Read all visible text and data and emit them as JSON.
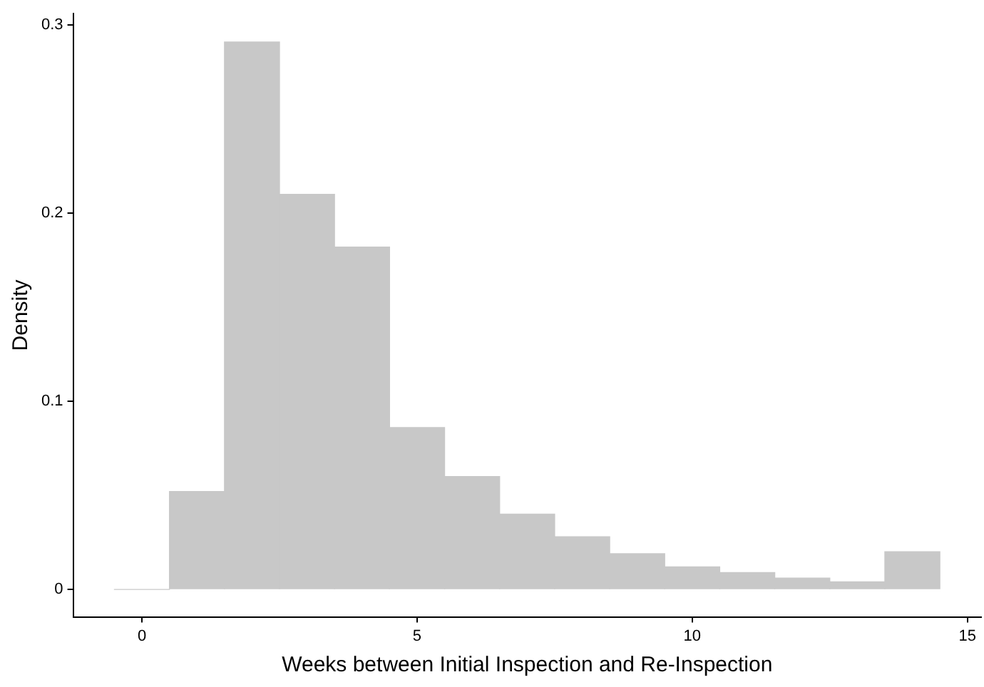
{
  "chart_data": {
    "type": "histogram",
    "xlabel": "Weeks between Initial Inspection and Re-Inspection",
    "ylabel": "Density",
    "bins": [
      -0.5,
      0.5,
      1.5,
      2.5,
      3.5,
      4.5,
      5.5,
      6.5,
      7.5,
      8.5,
      9.5,
      10.5,
      11.5,
      12.5,
      13.5,
      14.5
    ],
    "values": [
      0,
      0.052,
      0.291,
      0.21,
      0.182,
      0.086,
      0.06,
      0.04,
      0.028,
      0.019,
      0.012,
      0.009,
      0.006,
      0.004,
      0.02
    ],
    "color": "#c8c8c8",
    "xlim": [
      -1.25,
      15.25
    ],
    "xticks": [
      0,
      5,
      10,
      15
    ],
    "ylim": [
      -0.0146,
      0.306
    ],
    "yticks": [
      0,
      0.1,
      0.2,
      0.3
    ],
    "grid": false,
    "legend": false
  }
}
